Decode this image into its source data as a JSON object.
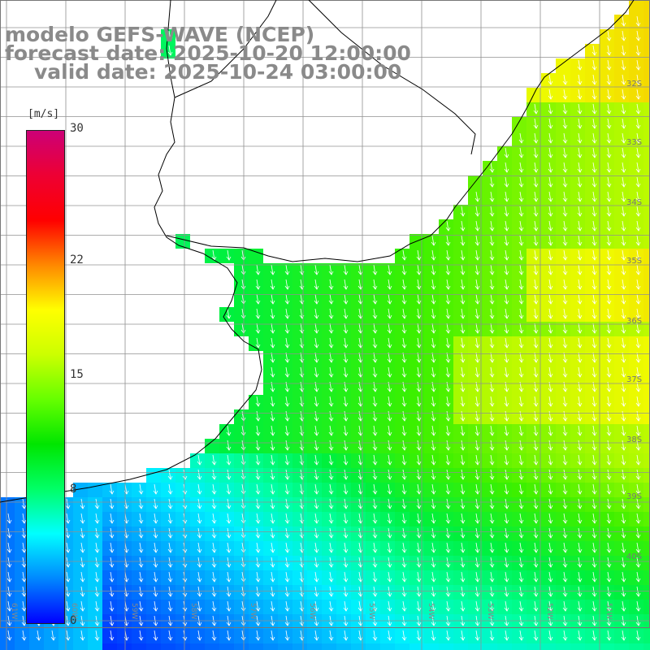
{
  "title": {
    "line1": "modelo GEFS-WAVE (NCEP)",
    "line2": "forecast date: 2025-10-20 12:00:00",
    "line3": "valid date: 2025-10-24 03:00:00"
  },
  "colorbar": {
    "unit": "[m/s]",
    "ticks": [
      "30",
      "22",
      "15",
      "8",
      "0"
    ],
    "tick_values": [
      30,
      22,
      15,
      8,
      0
    ],
    "min": 0,
    "max": 30,
    "colors": [
      "#0000ff",
      "#0088ff",
      "#00ffff",
      "#00ff66",
      "#00e600",
      "#66ff00",
      "#ccff00",
      "#ffff00",
      "#ff8800",
      "#ff0000",
      "#ee0033",
      "#cc0077"
    ]
  },
  "latitude_labels": [
    "32S",
    "33S",
    "34S",
    "35S",
    "36S",
    "37S",
    "38S",
    "39S",
    "40S"
  ],
  "longitude_labels": [
    "61W",
    "60W",
    "59W",
    "58W",
    "57W",
    "56W",
    "55W",
    "54W",
    "53W",
    "52W",
    "51W"
  ],
  "field": {
    "variable": "wind speed",
    "description_colors": {
      "land": "#ffffff",
      "grid": "#909090",
      "coast": "#000000",
      "arrow": "#ffffff"
    }
  }
}
